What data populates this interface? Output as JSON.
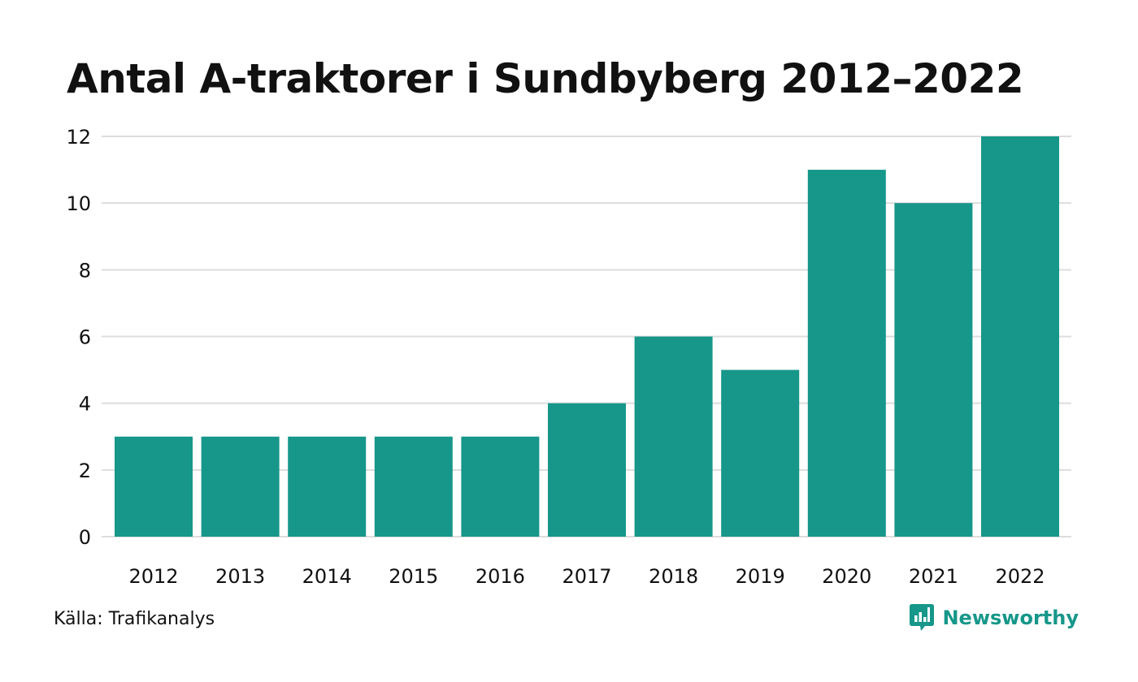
{
  "chart_data": {
    "type": "bar",
    "title": "Antal A-traktorer i Sundbyberg 2012–2022",
    "categories": [
      "2012",
      "2013",
      "2014",
      "2015",
      "2016",
      "2017",
      "2018",
      "2019",
      "2020",
      "2021",
      "2022"
    ],
    "values": [
      3,
      3,
      3,
      3,
      3,
      4,
      6,
      5,
      11,
      10,
      12
    ],
    "ylim": [
      0,
      12
    ],
    "yticks": [
      0,
      2,
      4,
      6,
      8,
      10,
      12
    ],
    "xlabel": "",
    "ylabel": "",
    "grid": true,
    "colors": {
      "bar": "#16978a",
      "grid": "#dddddd"
    }
  },
  "footer": {
    "source": "Källa: Trafikanalys",
    "brand": "Newsworthy",
    "brand_color": "#16978a",
    "brand_icon": "chat-bar-chart-icon"
  }
}
